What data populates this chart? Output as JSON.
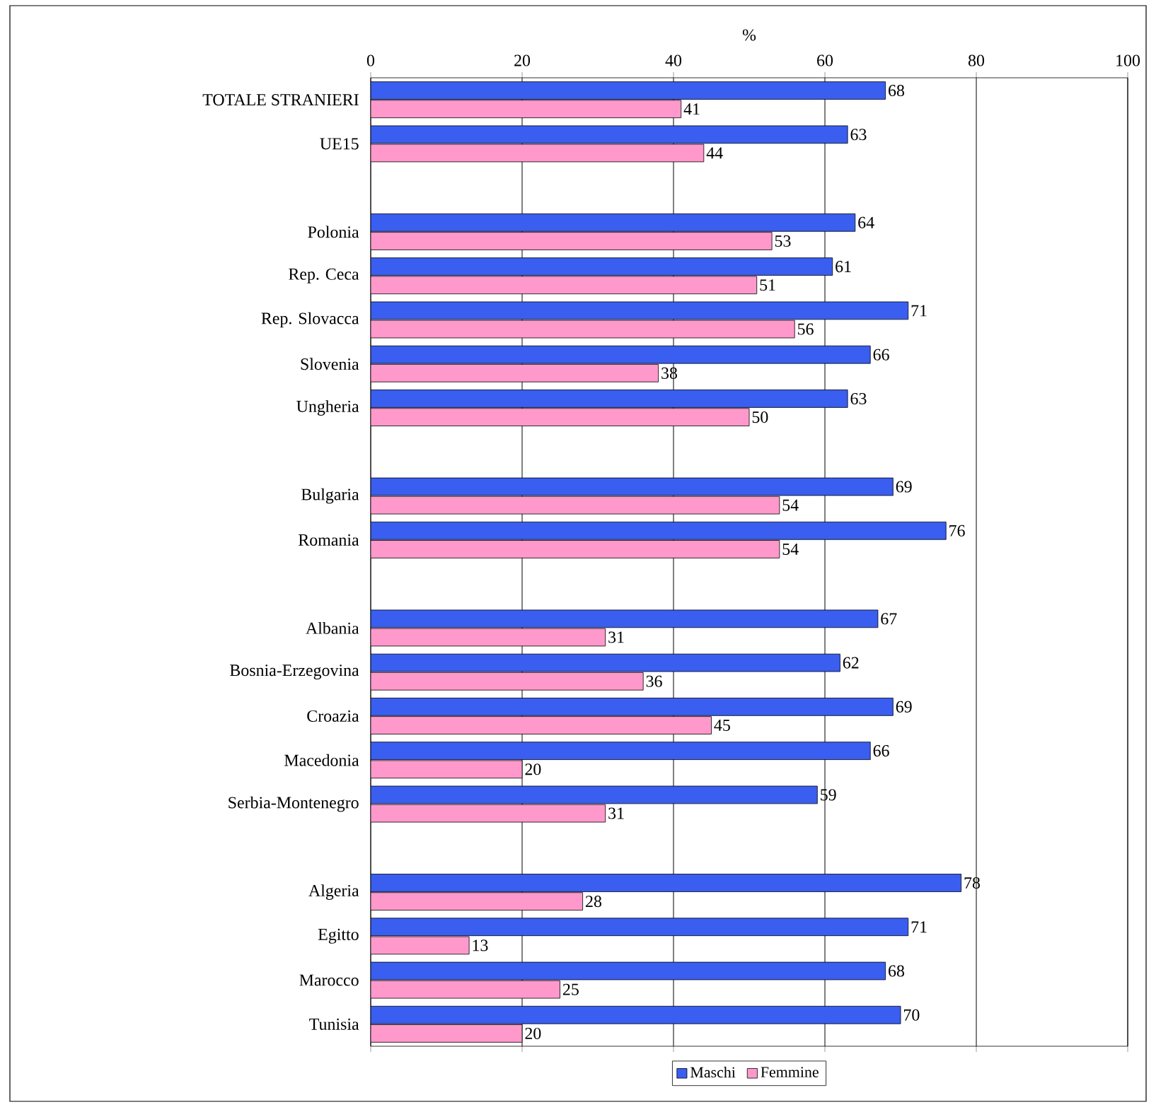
{
  "chart_data": {
    "type": "bar",
    "orientation": "horizontal",
    "xlabel": "%",
    "categories": [
      "TOTALE STRANIERI",
      "UE15",
      null,
      "Polonia",
      "Rep. Ceca",
      "Rep. Slovacca",
      "Slovenia",
      "Ungheria",
      null,
      "Bulgaria",
      "Romania",
      null,
      "Albania",
      "Bosnia-Erzegovina",
      "Croazia",
      "Macedonia",
      "Serbia-Montenegro",
      null,
      "Algeria",
      "Egitto",
      "Marocco",
      "Tunisia"
    ],
    "series": [
      {
        "name": "Maschi",
        "color": "#3a5ef0",
        "values": [
          68,
          63,
          null,
          64,
          61,
          71,
          66,
          63,
          null,
          69,
          76,
          null,
          67,
          62,
          69,
          66,
          59,
          null,
          78,
          71,
          68,
          70
        ]
      },
      {
        "name": "Femmine",
        "color": "#ff99cc",
        "values": [
          41,
          44,
          null,
          53,
          51,
          56,
          38,
          50,
          null,
          54,
          54,
          null,
          31,
          36,
          45,
          20,
          31,
          null,
          28,
          13,
          25,
          20
        ]
      }
    ],
    "xlim": [
      0,
      100
    ],
    "xticks": [
      0,
      20,
      40,
      60,
      80,
      100
    ],
    "grid": "x",
    "legend": "bottom",
    "data_labels": true
  }
}
